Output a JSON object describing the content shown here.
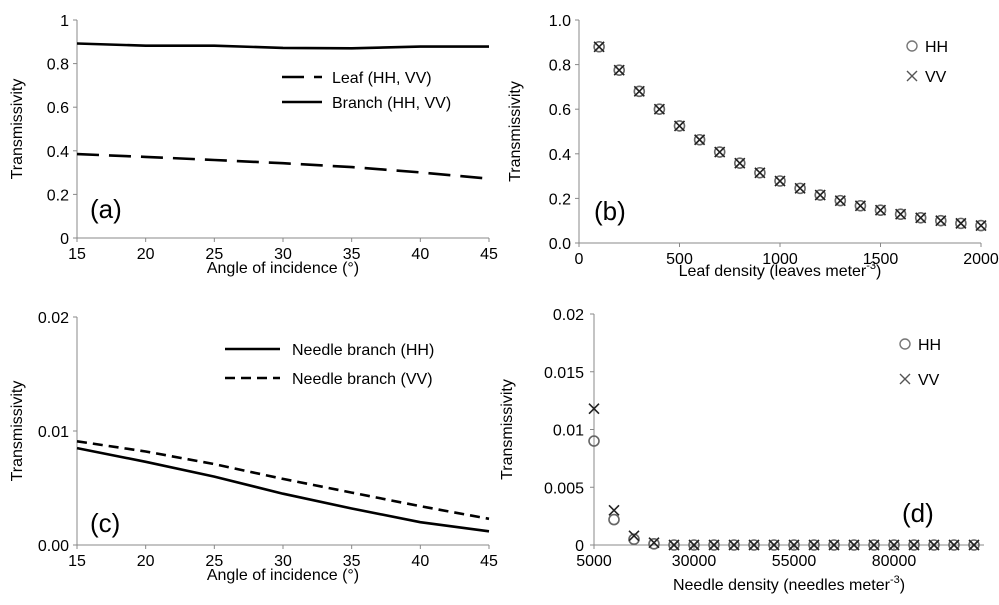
{
  "chart_data": [
    {
      "panel_tag": "(a)",
      "type": "line",
      "ylabel": "Transmissivity",
      "xlabel": "Angle of incidence (°)",
      "xlim": [
        15,
        45
      ],
      "ylim": [
        0,
        1
      ],
      "xticks": [
        "15",
        "20",
        "25",
        "30",
        "35",
        "40",
        "45"
      ],
      "yticks": [
        "0",
        "0.2",
        "0.4",
        "0.6",
        "0.8",
        "1"
      ],
      "grid": false,
      "legend_position": "right",
      "series": [
        {
          "name": "Leaf (HH, VV)",
          "style": "dashed",
          "x": [
            15,
            20,
            25,
            30,
            35,
            40,
            45
          ],
          "y": [
            0.385,
            0.372,
            0.358,
            0.343,
            0.325,
            0.301,
            0.272
          ]
        },
        {
          "name": "Branch (HH, VV)",
          "style": "solid",
          "x": [
            15,
            20,
            25,
            30,
            35,
            40,
            45
          ],
          "y": [
            0.892,
            0.882,
            0.882,
            0.872,
            0.87,
            0.878,
            0.878
          ]
        }
      ]
    },
    {
      "panel_tag": "(b)",
      "type": "scatter",
      "ylabel": "Transmissivity",
      "xlabel_main": "Leaf density (leaves meter",
      "xlabel_sup": "-3",
      "xlabel_end": ")",
      "xlim": [
        0,
        2000
      ],
      "ylim": [
        0,
        1
      ],
      "xticks": [
        "0",
        "500",
        "1000",
        "1500",
        "2000"
      ],
      "yticks": [
        "0.0",
        "0.2",
        "0.4",
        "0.6",
        "0.8",
        "1.0"
      ],
      "grid": false,
      "legend_position": "top-right",
      "x": [
        100,
        200,
        300,
        400,
        500,
        600,
        700,
        800,
        900,
        1000,
        1100,
        1200,
        1300,
        1400,
        1500,
        1600,
        1700,
        1800,
        1900,
        2000
      ],
      "series": [
        {
          "name": "HH",
          "marker": "circle",
          "y": [
            0.88,
            0.775,
            0.68,
            0.6,
            0.525,
            0.463,
            0.408,
            0.358,
            0.315,
            0.278,
            0.245,
            0.215,
            0.19,
            0.167,
            0.147,
            0.129,
            0.113,
            0.1,
            0.088,
            0.078
          ]
        },
        {
          "name": "VV",
          "marker": "cross",
          "y": [
            0.88,
            0.775,
            0.68,
            0.6,
            0.525,
            0.463,
            0.408,
            0.358,
            0.315,
            0.278,
            0.245,
            0.215,
            0.19,
            0.167,
            0.147,
            0.129,
            0.113,
            0.1,
            0.088,
            0.078
          ]
        }
      ]
    },
    {
      "panel_tag": "(c)",
      "type": "line",
      "ylabel": "Transmissivity",
      "xlabel": "Angle of incidence (°)",
      "xlim": [
        15,
        45
      ],
      "ylim": [
        0,
        0.02
      ],
      "xticks": [
        "15",
        "20",
        "25",
        "30",
        "35",
        "40",
        "45"
      ],
      "yticks": [
        "0.00",
        "0.01",
        "0.02"
      ],
      "grid": false,
      "legend_position": "top-right",
      "series": [
        {
          "name": "Needle branch (HH)",
          "style": "solid",
          "x": [
            15,
            20,
            25,
            30,
            35,
            40,
            45
          ],
          "y": [
            0.0085,
            0.0073,
            0.006,
            0.0045,
            0.0032,
            0.002,
            0.0012
          ]
        },
        {
          "name": "Needle branch (VV)",
          "style": "dashed",
          "x": [
            15,
            20,
            25,
            30,
            35,
            40,
            45
          ],
          "y": [
            0.0091,
            0.0082,
            0.0071,
            0.0058,
            0.0046,
            0.0034,
            0.0023
          ]
        }
      ]
    },
    {
      "panel_tag": "(d)",
      "type": "scatter",
      "ylabel": "Transmissivity",
      "xlabel_main": "Needle density (needles meter",
      "xlabel_sup": "-3",
      "xlabel_end": ")",
      "xlim": [
        5000,
        102500
      ],
      "ylim": [
        0,
        0.02
      ],
      "xticks": [
        "5000",
        "30000",
        "55000",
        "80000"
      ],
      "xtick_values": [
        5000,
        30000,
        55000,
        80000
      ],
      "yticks": [
        "0",
        "0.005",
        "0.01",
        "0.015",
        "0.02"
      ],
      "grid": false,
      "legend_position": "top-right",
      "x": [
        5000,
        10000,
        15000,
        20000,
        25000,
        30000,
        35000,
        40000,
        45000,
        50000,
        55000,
        60000,
        65000,
        70000,
        75000,
        80000,
        85000,
        90000,
        95000,
        100000
      ],
      "series": [
        {
          "name": "HH",
          "marker": "circle",
          "y": [
            0.009,
            0.0022,
            0.0005,
            0.0001,
            0,
            0,
            0,
            0,
            0,
            0,
            0,
            0,
            0,
            0,
            0,
            0,
            0,
            0,
            0,
            0
          ]
        },
        {
          "name": "VV",
          "marker": "cross",
          "y": [
            0.0118,
            0.003,
            0.0008,
            0.0002,
            0,
            0,
            0,
            0,
            0,
            0,
            0,
            0,
            0,
            0,
            0,
            0,
            0,
            0,
            0,
            0
          ]
        }
      ]
    }
  ]
}
